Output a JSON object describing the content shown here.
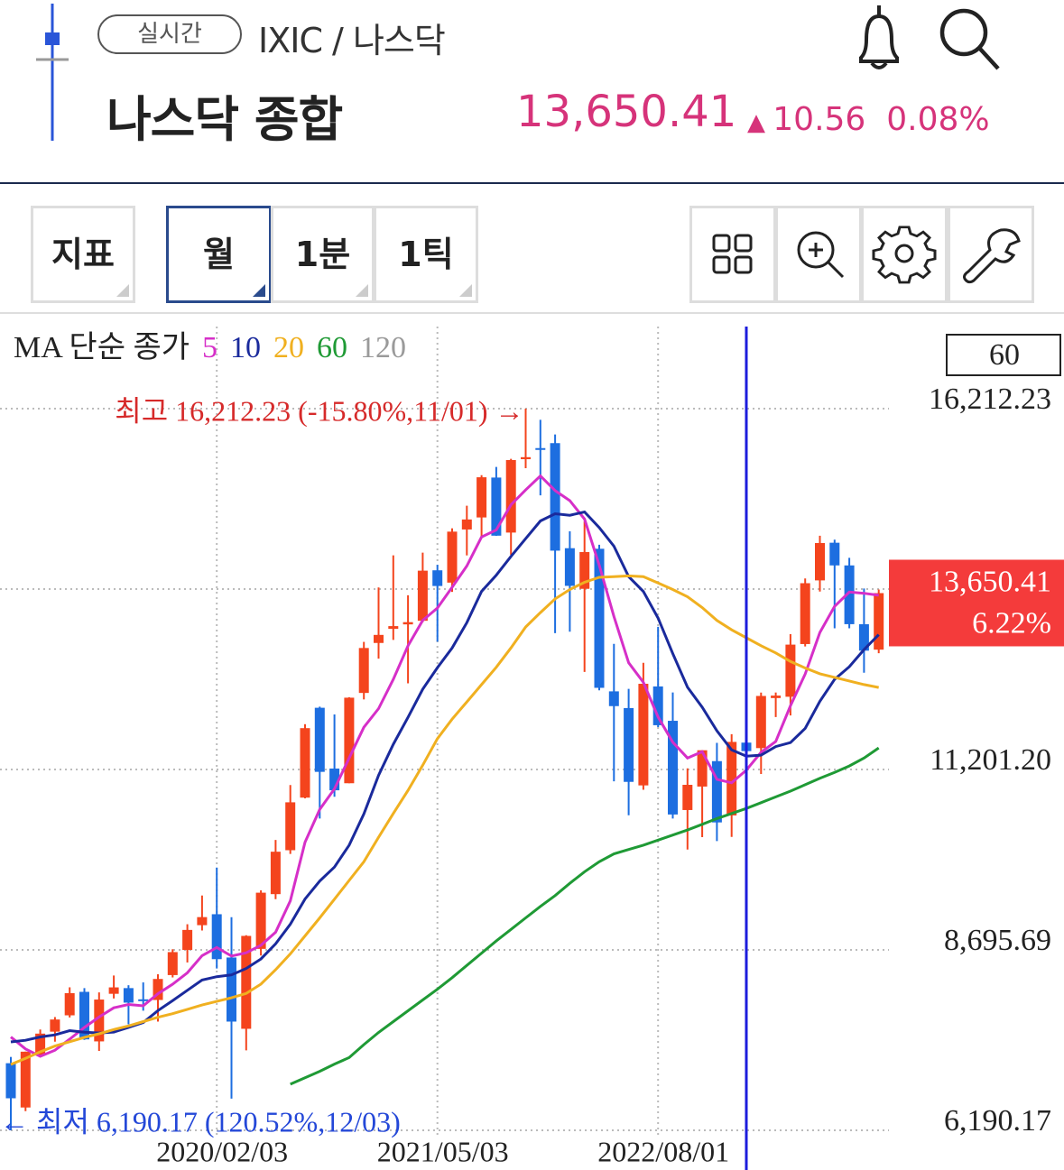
{
  "header": {
    "badge": "실시간",
    "symbol": "IXIC / 나스닥",
    "title": "나스닥 종합",
    "price": "13,650.41",
    "change": "10.56",
    "change_pct": "0.08%"
  },
  "toolbar": {
    "buttons": [
      "지표",
      "월",
      "1분",
      "1틱"
    ]
  },
  "chart_data": {
    "type": "candlestick",
    "legend_title": "MA 단순 종가",
    "period_label": "60",
    "last_label": {
      "price": "13,650.41",
      "change": "6.22%"
    },
    "annotations": {
      "high": "최고 16,212.23 (-15.80%,11/01) →",
      "low": "← 최저 6,190.17 (120.52%,12/03)"
    },
    "colors": {
      "up": "#f4441d",
      "down": "#1d6ee0"
    },
    "categories": [
      null,
      null,
      null,
      null,
      null,
      null,
      null,
      null,
      null,
      null,
      null,
      null,
      null,
      null,
      "2020/02/03",
      null,
      null,
      null,
      null,
      null,
      null,
      null,
      null,
      null,
      null,
      null,
      null,
      null,
      null,
      "2021/05/03",
      null,
      null,
      null,
      null,
      null,
      null,
      null,
      null,
      null,
      null,
      null,
      null,
      null,
      null,
      "2022/08/01",
      null,
      null,
      null,
      null,
      null,
      null,
      null,
      null,
      null,
      null,
      null,
      null,
      null,
      null,
      null
    ],
    "open": [
      7122,
      6507,
      7235,
      7560,
      7787,
      8113,
      7425,
      8086,
      8165,
      8009,
      8000,
      8346,
      8695,
      9039,
      9191,
      8590,
      7600,
      8710,
      9470,
      10080,
      10810,
      12058,
      11214,
      11010,
      12264,
      12958,
      13154,
      13216,
      13266,
      13967,
      13796,
      14534,
      14701,
      15255,
      14491,
      15510,
      15664,
      15733,
      14274,
      13710,
      14266,
      12286,
      12054,
      10980,
      12354,
      11877,
      10638,
      10964,
      11317,
      10563,
      11574,
      11498,
      12193,
      12211,
      12943,
      13827,
      14350,
      14035,
      13218,
      12865
    ],
    "high": [
      7209,
      7283,
      7590,
      7763,
      8176,
      8165,
      8106,
      8340,
      8205,
      8244,
      8357,
      8705,
      9052,
      9451,
      9838,
      9150,
      8900,
      9523,
      10222,
      10985,
      11830,
      12074,
      11966,
      12205,
      12973,
      13729,
      14175,
      13620,
      14212,
      14044,
      14550,
      14864,
      15288,
      15403,
      15515,
      16212.23,
      16057,
      15853,
      14509,
      14646,
      14322,
      12946,
      12320,
      12682,
      13182,
      12270,
      11217,
      11468,
      11571,
      11691,
      12270,
      12269,
      12270,
      13080,
      13854,
      14447,
      14393,
      14141,
      13715,
      13700
    ],
    "low": [
      6190.17,
      6457,
      7230,
      7421,
      7757,
      7446,
      7292,
      8021,
      7662,
      7851,
      7700,
      8313,
      8521,
      8965,
      8437,
      6631,
      7300,
      8617,
      9401,
      10028,
      10800,
      10520,
      10822,
      11010,
      12174,
      12740,
      13001,
      12397,
      13248,
      12975,
      13667,
      14174,
      14439,
      14445,
      14182,
      15385,
      15008,
      13094,
      13115,
      12555,
      12300,
      11036,
      10565,
      10920,
      11790,
      10520,
      10089,
      10262,
      10207,
      10265,
      11482,
      11138,
      11929,
      11951,
      12909,
      13672,
      13161,
      13161,
      12544,
      12815
    ],
    "close": [
      6635,
      7282,
      7533,
      7729,
      8095,
      7453,
      8006,
      8175,
      7963,
      7999,
      8292,
      8665,
      8973,
      9151,
      8567,
      7700,
      8890,
      9490,
      10059,
      10745,
      11775,
      11168,
      10912,
      12198,
      12888,
      13070,
      13192,
      13247,
      13962,
      13749,
      14504,
      14673,
      15259,
      14448,
      15498,
      15538,
      15645,
      14240,
      13751,
      14221,
      12335,
      12081,
      11029,
      12391,
      11816,
      10576,
      10988,
      11468,
      10466,
      11584,
      11456,
      12222,
      12227,
      12935,
      13788,
      14346,
      14035,
      13219,
      12851,
      13650.41
    ],
    "series": [
      {
        "name": "5",
        "color": "#d62fc8",
        "values": [
          7486,
          7320,
          7217,
          7302,
          7455,
          7618,
          7763,
          7892,
          7938,
          7919,
          8087,
          8219,
          8378,
          8616,
          8730,
          8611,
          8656,
          8760,
          8941,
          9377,
          10192,
          10647,
          10932,
          11360,
          11788,
          12047,
          12452,
          12919,
          13272,
          13444,
          13731,
          14027,
          14429,
          14527,
          14876,
          15083,
          15278,
          15074,
          14934,
          14679,
          14038,
          13326,
          12683,
          12411,
          11930,
          11579,
          11360,
          11448,
          11063,
          11016,
          11192,
          11439,
          11591,
          12085,
          12526,
          13104,
          13466,
          13665,
          13648,
          13620
        ]
      },
      {
        "name": "10",
        "color": "#1a2a9c",
        "values": [
          7418,
          7440,
          7487,
          7515,
          7574,
          7552,
          7542,
          7555,
          7620,
          7687,
          7853,
          7991,
          8135,
          8277,
          8324,
          8349,
          8438,
          8569,
          8779,
          9053,
          9402,
          9652,
          9846,
          10150,
          10583,
          11120,
          11550,
          11925,
          12316,
          12616,
          12889,
          13240,
          13674,
          13899,
          14160,
          14407,
          14652,
          14752,
          14731,
          14778,
          14561,
          14302,
          13879,
          13673,
          13305,
          12809,
          12343,
          12066,
          11737,
          11473,
          11386,
          11400,
          11519,
          11574,
          11771,
          12148,
          12453,
          12628,
          12866,
          13073
        ]
      },
      {
        "name": "20",
        "color": "#f0b020",
        "values": [
          7105,
          7190,
          7280,
          7360,
          7420,
          7480,
          7530,
          7590,
          7640,
          7700,
          7760,
          7810,
          7870,
          7930,
          7980,
          8030,
          8090,
          8220,
          8420,
          8640,
          8890,
          9140,
          9400,
          9660,
          9920,
          10260,
          10590,
          10910,
          11260,
          11630,
          11900,
          12140,
          12380,
          12620,
          12890,
          13180,
          13380,
          13570,
          13700,
          13800,
          13870,
          13880,
          13890,
          13880,
          13790,
          13700,
          13600,
          13450,
          13270,
          13140,
          13030,
          12920,
          12820,
          12700,
          12610,
          12530,
          12480,
          12430,
          12380,
          12340
        ]
      },
      {
        "name": "60",
        "color": "#1f9a35",
        "values": [
          null,
          null,
          null,
          null,
          null,
          null,
          null,
          null,
          null,
          null,
          null,
          null,
          null,
          null,
          null,
          null,
          null,
          null,
          null,
          6830,
          6920,
          7010,
          7110,
          7200,
          7380,
          7550,
          7700,
          7850,
          8000,
          8150,
          8310,
          8480,
          8650,
          8820,
          8980,
          9140,
          9300,
          9450,
          9620,
          9780,
          9920,
          10030,
          10090,
          10150,
          10220,
          10290,
          10360,
          10440,
          10520,
          10590,
          10660,
          10740,
          10820,
          10900,
          10990,
          11080,
          11160,
          11250,
          11360,
          11500
        ]
      },
      {
        "name": "120",
        "color": "#9a9a9a",
        "values": [
          null,
          null,
          null,
          null,
          null,
          null,
          null,
          null,
          null,
          null,
          null,
          null,
          null,
          null,
          null,
          null,
          null,
          null,
          null,
          null,
          null,
          null,
          null,
          null,
          null,
          null,
          null,
          null,
          null,
          null,
          null,
          null,
          null,
          null,
          null,
          null,
          null,
          null,
          null,
          null,
          null,
          null,
          null,
          null,
          null,
          null,
          null,
          null,
          null,
          null,
          null,
          null,
          null,
          null,
          null,
          null,
          null,
          null,
          null,
          null
        ]
      }
    ],
    "ylim": [
      5639,
      17352
    ],
    "yticks": [
      {
        "value": 6190.17,
        "label": "6,190.17"
      },
      {
        "value": 8695.69,
        "label": "8,695.69"
      },
      {
        "value": 11201.2,
        "label": "11,201.20"
      },
      {
        "value": 13706.72,
        "label": null
      },
      {
        "value": 16212.23,
        "label": "16,212.23"
      }
    ],
    "grid": true
  }
}
